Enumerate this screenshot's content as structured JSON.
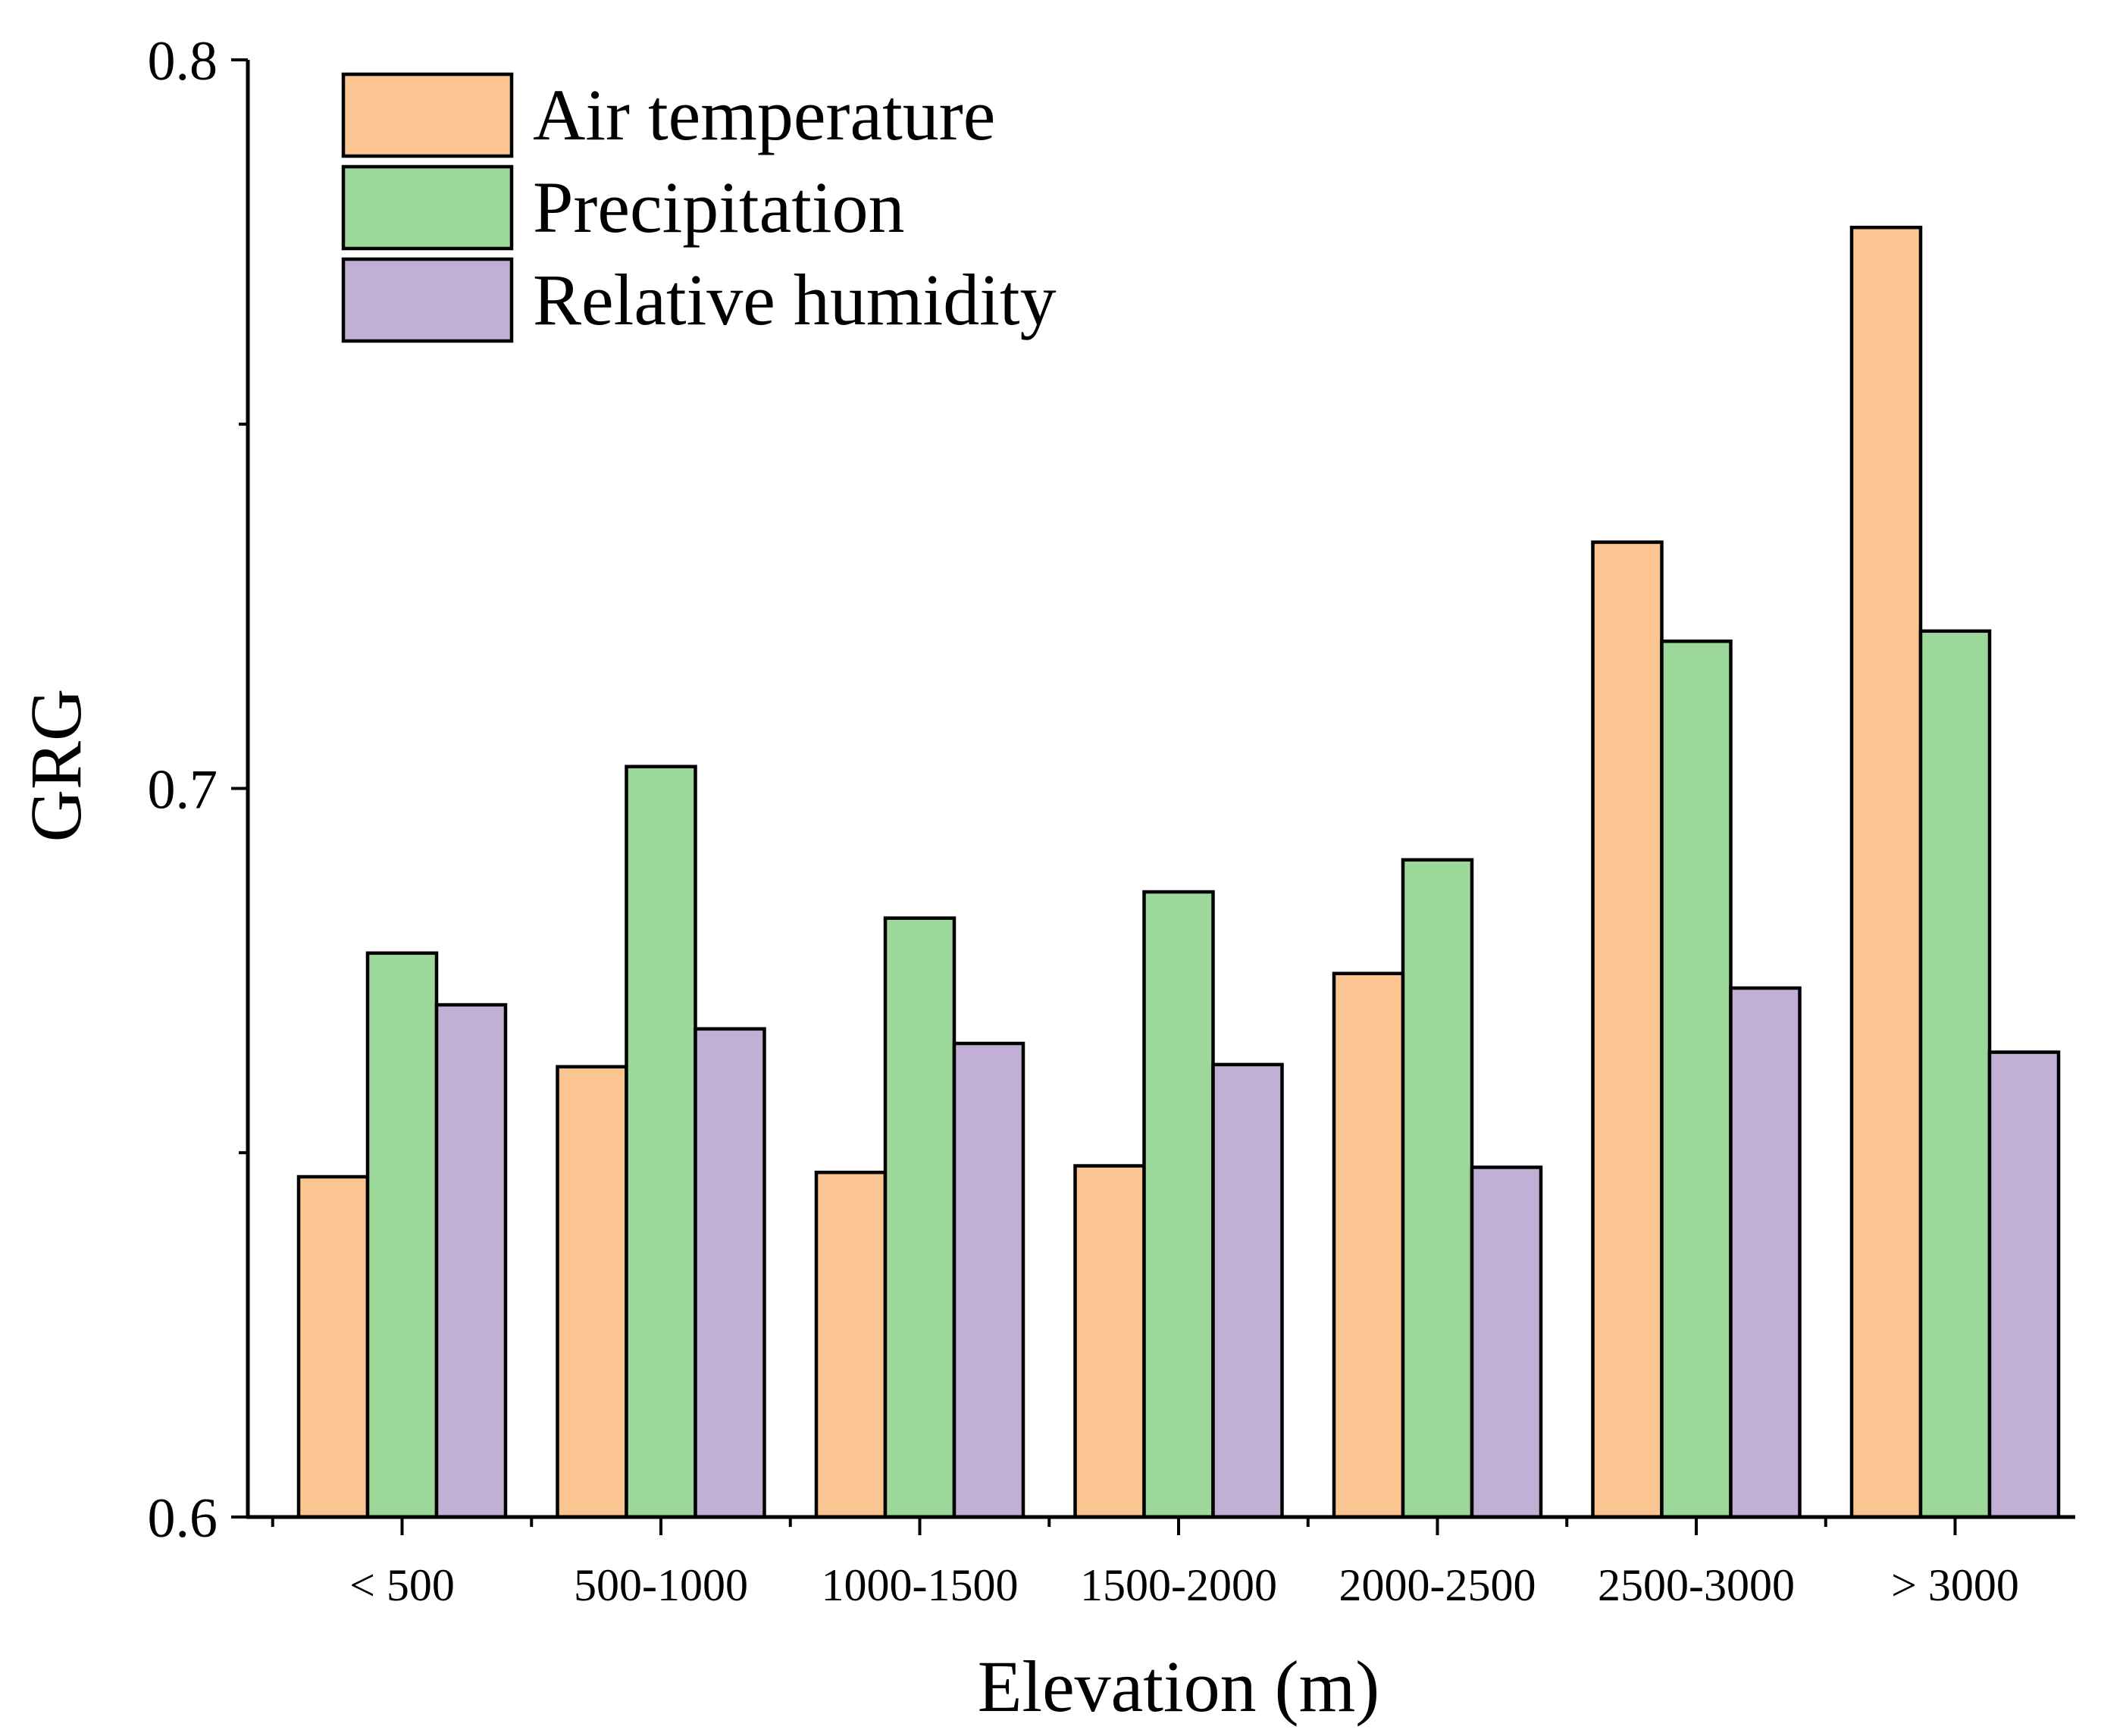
{
  "chart_data": {
    "type": "bar",
    "title": "",
    "xlabel": "Elevation (m)",
    "ylabel": "GRG",
    "ylim": [
      0.6,
      0.8
    ],
    "yticks": [
      0.6,
      0.7,
      0.8
    ],
    "ytick_labels": [
      "0.6",
      "0.7",
      "0.8"
    ],
    "legend_position": "top-left",
    "grid": false,
    "categories": [
      "< 500",
      "500-1000",
      "1000-1500",
      "1500-2000",
      "2000-2500",
      "2500-3000",
      "> 3000"
    ],
    "series": [
      {
        "name": "Air temperature",
        "color": "#FBC592",
        "values": [
          0.6467,
          0.6618,
          0.6473,
          0.6482,
          0.6746,
          0.7338,
          0.777
        ]
      },
      {
        "name": "Precipitation",
        "color": "#9DD89B",
        "values": [
          0.6774,
          0.703,
          0.6822,
          0.6858,
          0.6902,
          0.7202,
          0.7216
        ]
      },
      {
        "name": "Relative humidity",
        "color": "#C1AFD5",
        "values": [
          0.6703,
          0.667,
          0.665,
          0.6621,
          0.648,
          0.6726,
          0.6638
        ]
      }
    ]
  }
}
